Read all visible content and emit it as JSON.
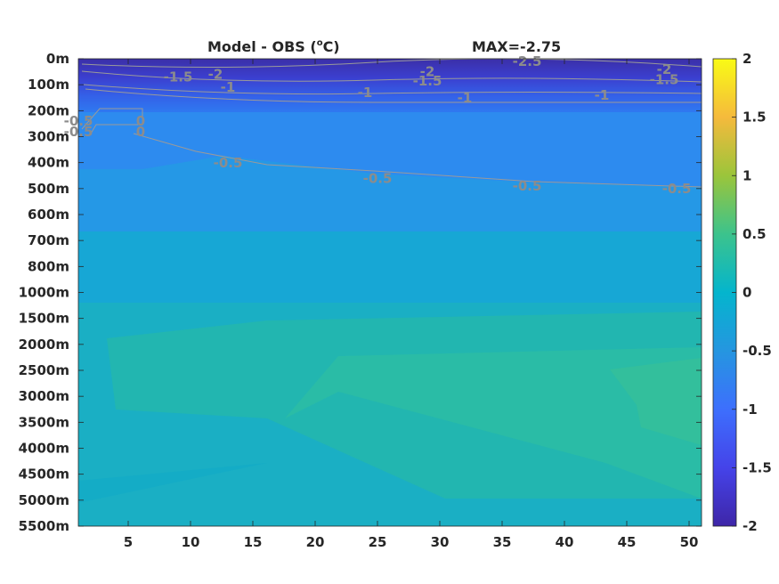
{
  "chart_data": {
    "type": "heatmap",
    "title": "Model - OBS (",
    "title_unit_sup": "o",
    "title_unit": "C)",
    "max_text": "MAX=-2.75",
    "x_ticks": [
      5,
      10,
      15,
      20,
      25,
      30,
      35,
      40,
      45,
      50
    ],
    "xlim": [
      1,
      51
    ],
    "y_ticks": [
      "0m",
      "100m",
      "200m",
      "300m",
      "400m",
      "500m",
      "600m",
      "700m",
      "800m",
      "1000m",
      "1500m",
      "2000m",
      "2500m",
      "3000m",
      "3500m",
      "4000m",
      "4500m",
      "5000m",
      "5500m"
    ],
    "y_direction": "reversed",
    "colorbar": {
      "colormap": "parula",
      "range": [
        -2,
        2
      ],
      "ticks": [
        "2",
        "1.5",
        "1",
        "0.5",
        "0",
        "-0.5",
        "-1",
        "-1.5",
        "-2"
      ]
    },
    "contour_labels": [
      {
        "text": "-2",
        "x": 12,
        "depth": "50m"
      },
      {
        "text": "-1.5",
        "x": 9,
        "depth": "60m"
      },
      {
        "text": "-1",
        "x": 13,
        "depth": "100m"
      },
      {
        "text": "-2",
        "x": 29,
        "depth": "40m"
      },
      {
        "text": "-1.5",
        "x": 29,
        "depth": "75m"
      },
      {
        "text": "-2.5",
        "x": 37,
        "depth": "0m"
      },
      {
        "text": "-2",
        "x": 48,
        "depth": "30m"
      },
      {
        "text": "-1.5",
        "x": 48,
        "depth": "70m"
      },
      {
        "text": "-1",
        "x": 24,
        "depth": "120m"
      },
      {
        "text": "-1",
        "x": 32,
        "depth": "140m"
      },
      {
        "text": "-1",
        "x": 43,
        "depth": "130m"
      },
      {
        "text": "-0.5",
        "x": 1,
        "depth": "230m"
      },
      {
        "text": "-0.5",
        "x": 1,
        "depth": "270m"
      },
      {
        "text": "0",
        "x": 6,
        "depth": "230m"
      },
      {
        "text": "0",
        "x": 6,
        "depth": "270m"
      },
      {
        "text": "-0.5",
        "x": 13,
        "depth": "390m"
      },
      {
        "text": "-0.5",
        "x": 25,
        "depth": "450m"
      },
      {
        "text": "-0.5",
        "x": 37,
        "depth": "480m"
      },
      {
        "text": "-0.5",
        "x": 49,
        "depth": "490m"
      }
    ]
  }
}
